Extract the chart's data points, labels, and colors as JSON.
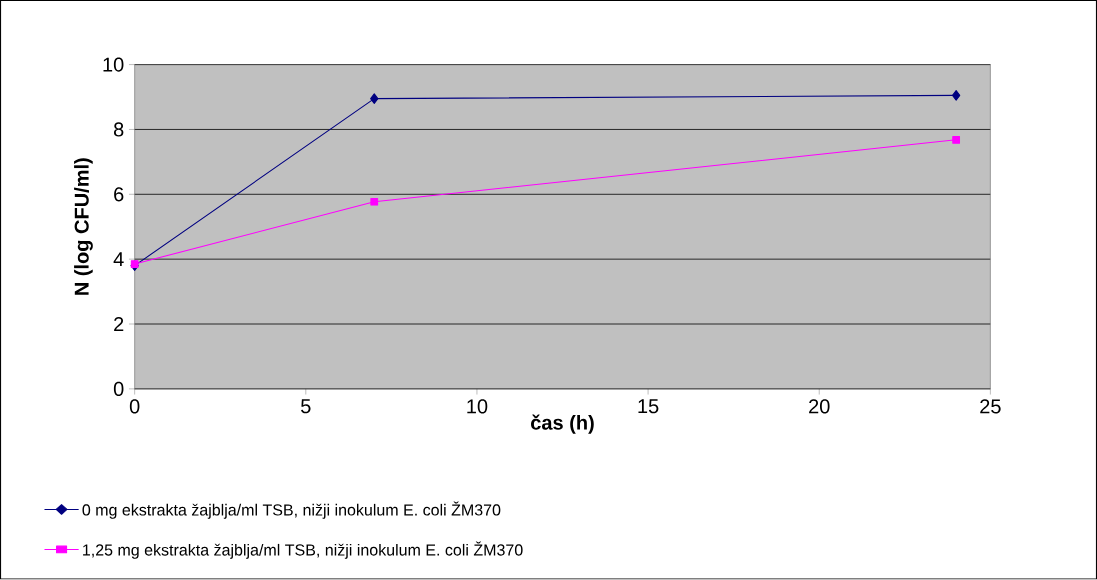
{
  "chart_data": {
    "type": "line",
    "xlabel": "čas (h)",
    "ylabel": "N (log CFU/ml)",
    "x": [
      0,
      7,
      24
    ],
    "series": [
      {
        "name": "0 mg ekstrakta žajblja/ml TSB, nižji inokulum E. coli ŽM370",
        "color": "#000080",
        "marker": "diamond",
        "values": [
          3.8,
          8.95,
          9.05
        ]
      },
      {
        "name": "1,25 mg ekstrakta žajblja/ml TSB, nižji inokulum E. coli ŽM370",
        "color": "#ff00ff",
        "marker": "square",
        "values": [
          3.85,
          5.77,
          7.68
        ]
      }
    ],
    "xlim": [
      0,
      25
    ],
    "xticks": [
      0,
      5,
      10,
      15,
      20,
      25
    ],
    "ylim": [
      0,
      10
    ],
    "yticks": [
      0,
      2,
      4,
      6,
      8,
      10
    ],
    "grid": "y",
    "legend": "bottom",
    "line_style": "solid"
  }
}
